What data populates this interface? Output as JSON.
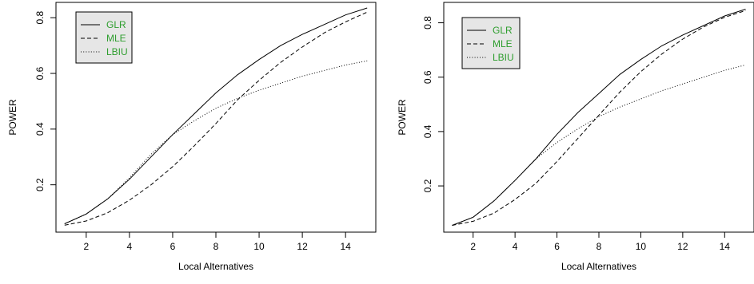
{
  "chart_data": [
    {
      "type": "line",
      "xlabel": "Local Alternatives",
      "ylabel": "POWER",
      "xlim": [
        0.6,
        15.4
      ],
      "ylim": [
        0.03,
        0.855
      ],
      "x_ticks": [
        2,
        4,
        6,
        8,
        10,
        12,
        14
      ],
      "y_ticks": [
        0.2,
        0.4,
        0.6,
        0.8
      ],
      "grid": false,
      "legend_position": "top-left",
      "legend_text_color": "#2e9e2e",
      "legend_bg_color": "#e6e6e6",
      "x": [
        1,
        2,
        3,
        4,
        5,
        6,
        7,
        8,
        9,
        10,
        11,
        12,
        13,
        14,
        15
      ],
      "series": [
        {
          "name": "GLR",
          "dash": "solid",
          "values": [
            0.06,
            0.095,
            0.15,
            0.22,
            0.3,
            0.38,
            0.455,
            0.53,
            0.595,
            0.65,
            0.7,
            0.74,
            0.775,
            0.81,
            0.835
          ]
        },
        {
          "name": "MLE",
          "dash": "dashed",
          "values": [
            0.055,
            0.07,
            0.1,
            0.145,
            0.2,
            0.265,
            0.34,
            0.42,
            0.505,
            0.575,
            0.64,
            0.695,
            0.745,
            0.785,
            0.82
          ]
        },
        {
          "name": "LBIU",
          "dash": "dotted",
          "values": [
            0.06,
            0.095,
            0.15,
            0.225,
            0.31,
            0.38,
            0.43,
            0.475,
            0.51,
            0.54,
            0.565,
            0.59,
            0.61,
            0.63,
            0.645
          ]
        }
      ]
    },
    {
      "type": "line",
      "xlabel": "Local Alternatives",
      "ylabel": "POWER",
      "xlim": [
        0.6,
        15.4
      ],
      "ylim": [
        0.03,
        0.875
      ],
      "x_ticks": [
        2,
        4,
        6,
        8,
        10,
        12,
        14
      ],
      "y_ticks": [
        0.2,
        0.4,
        0.6,
        0.8
      ],
      "grid": false,
      "legend_position": "top-left",
      "legend_text_color": "#2e9e2e",
      "legend_bg_color": "#e6e6e6",
      "x": [
        1,
        2,
        3,
        4,
        5,
        6,
        7,
        8,
        9,
        10,
        11,
        12,
        13,
        14,
        15
      ],
      "series": [
        {
          "name": "GLR",
          "dash": "solid",
          "values": [
            0.055,
            0.085,
            0.145,
            0.22,
            0.3,
            0.39,
            0.47,
            0.54,
            0.61,
            0.665,
            0.715,
            0.755,
            0.79,
            0.825,
            0.85
          ]
        },
        {
          "name": "MLE",
          "dash": "dashed",
          "values": [
            0.055,
            0.07,
            0.1,
            0.15,
            0.21,
            0.29,
            0.375,
            0.46,
            0.545,
            0.62,
            0.685,
            0.74,
            0.785,
            0.82,
            0.845
          ]
        },
        {
          "name": "LBIU",
          "dash": "dotted",
          "values": [
            0.055,
            0.085,
            0.145,
            0.22,
            0.3,
            0.36,
            0.41,
            0.455,
            0.49,
            0.52,
            0.55,
            0.575,
            0.6,
            0.625,
            0.645
          ]
        }
      ]
    }
  ]
}
